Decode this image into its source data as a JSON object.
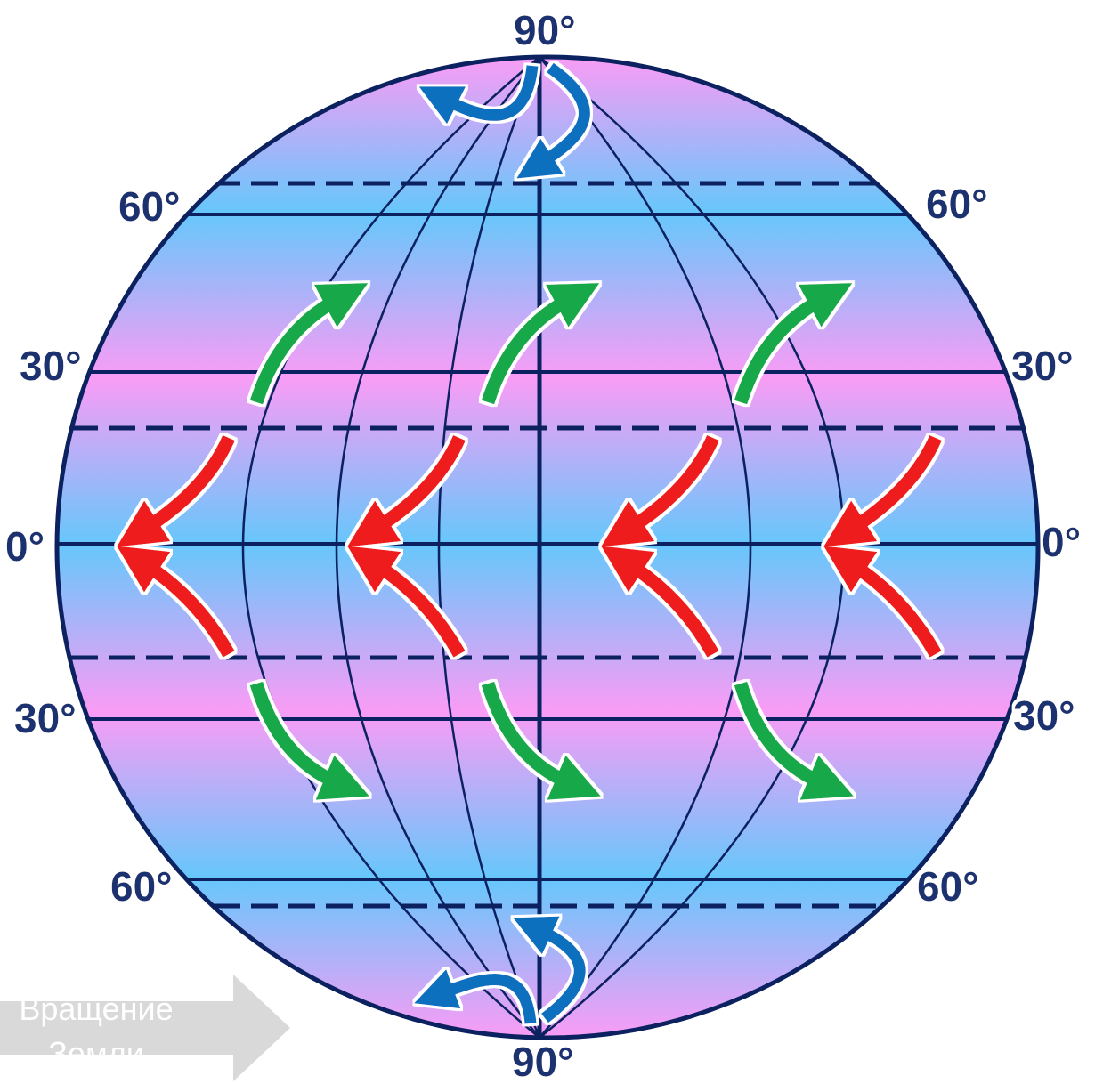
{
  "labels": {
    "north_pole": "90°",
    "south_pole": "90°",
    "lat60_nw": "60°",
    "lat60_ne": "60°",
    "lat30_nw": "30°",
    "lat30_ne": "30°",
    "equator_w": "0°",
    "equator_e": "0°",
    "lat30_sw": "30°",
    "lat30_se": "30°",
    "lat60_sw": "60°",
    "lat60_se": "60°"
  },
  "rotation": {
    "line1": "Вращение",
    "line2": "Земли"
  },
  "colors": {
    "outline": "#0b2160",
    "band_blue": "#66c7fb",
    "band_pink": "#f99cf5",
    "trade_winds": "#ee1c1c",
    "westerlies": "#13a84a",
    "polar_easterlies": "#0d6fbf",
    "rotation_arrow": "#d6d6d6"
  }
}
